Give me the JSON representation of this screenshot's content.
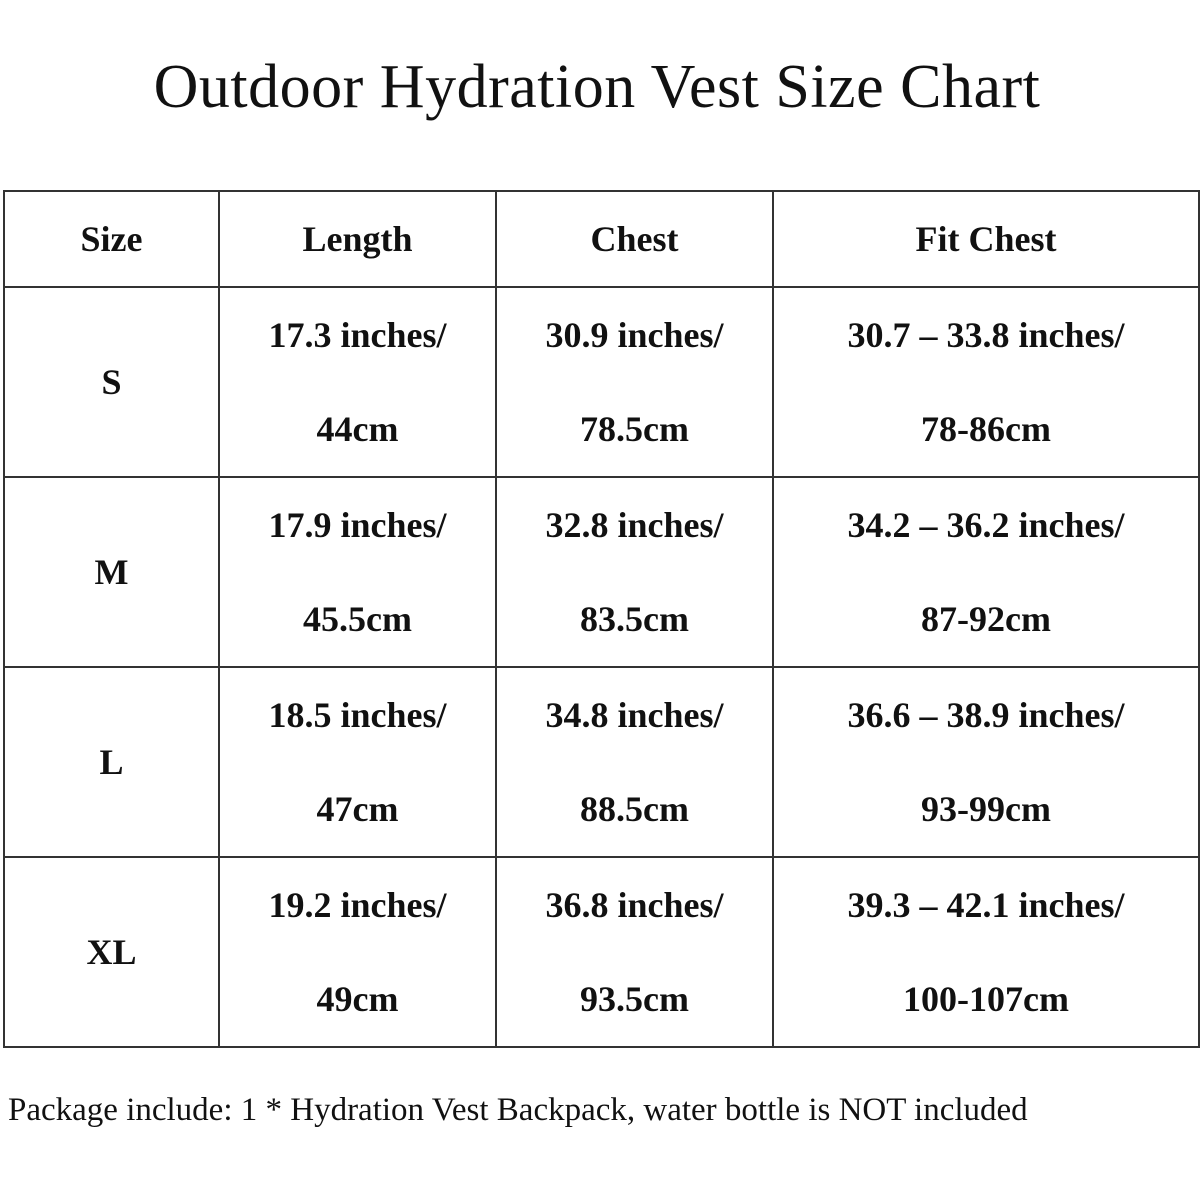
{
  "title": "Outdoor Hydration Vest Size Chart",
  "table": {
    "headers": [
      "Size",
      "Length",
      "Chest",
      "Fit Chest"
    ],
    "rows": [
      {
        "size": "S",
        "length": [
          "17.3 inches/",
          "44cm"
        ],
        "chest": [
          "30.9 inches/",
          "78.5cm"
        ],
        "fit_chest": [
          "30.7 – 33.8 inches/",
          "78-86cm"
        ]
      },
      {
        "size": "M",
        "length": [
          "17.9 inches/",
          "45.5cm"
        ],
        "chest": [
          "32.8 inches/",
          "83.5cm"
        ],
        "fit_chest": [
          "34.2 – 36.2 inches/",
          "87-92cm"
        ]
      },
      {
        "size": "L",
        "length": [
          "18.5 inches/",
          "47cm"
        ],
        "chest": [
          "34.8 inches/",
          "88.5cm"
        ],
        "fit_chest": [
          "36.6 – 38.9 inches/",
          "93-99cm"
        ]
      },
      {
        "size": "XL",
        "length": [
          "19.2 inches/",
          "49cm"
        ],
        "chest": [
          "36.8 inches/",
          "93.5cm"
        ],
        "fit_chest": [
          "39.3 – 42.1 inches/",
          "100-107cm"
        ]
      }
    ]
  },
  "footer": "Package include: 1 * Hydration Vest Backpack, water bottle is NOT included"
}
